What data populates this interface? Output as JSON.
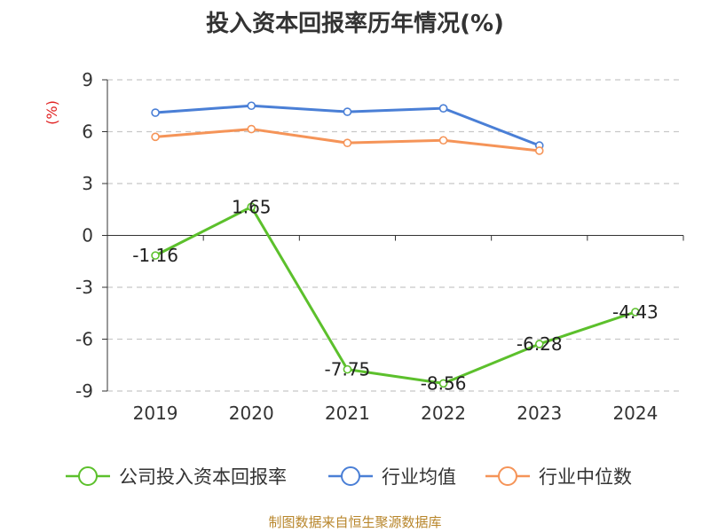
{
  "chart_data": {
    "type": "line",
    "title": "投入资本回报率历年情况(%)",
    "ylabel": "(%)",
    "ylim": [
      -9,
      9
    ],
    "yticks": [
      9,
      6,
      3,
      0,
      -3,
      -6,
      -9
    ],
    "categories": [
      "2019",
      "2020",
      "2021",
      "2022",
      "2023",
      "2024"
    ],
    "grid": true,
    "legend_position": "bottom",
    "series": [
      {
        "name": "公司投入资本回报率",
        "color": "#5cc02c",
        "values": [
          -1.16,
          1.65,
          -7.75,
          -8.56,
          -6.28,
          -4.43
        ],
        "labels": [
          "-1.16",
          "1.65",
          "-7.75",
          "-8.56",
          "-6.28",
          "-4.43"
        ]
      },
      {
        "name": "行业均值",
        "color": "#4a7fd6",
        "values": [
          7.1,
          7.5,
          7.15,
          7.35,
          5.2,
          null
        ]
      },
      {
        "name": "行业中位数",
        "color": "#f59458",
        "values": [
          5.7,
          6.15,
          5.35,
          5.5,
          4.9,
          null
        ]
      }
    ]
  },
  "source": "制图数据来自恒生聚源数据库"
}
